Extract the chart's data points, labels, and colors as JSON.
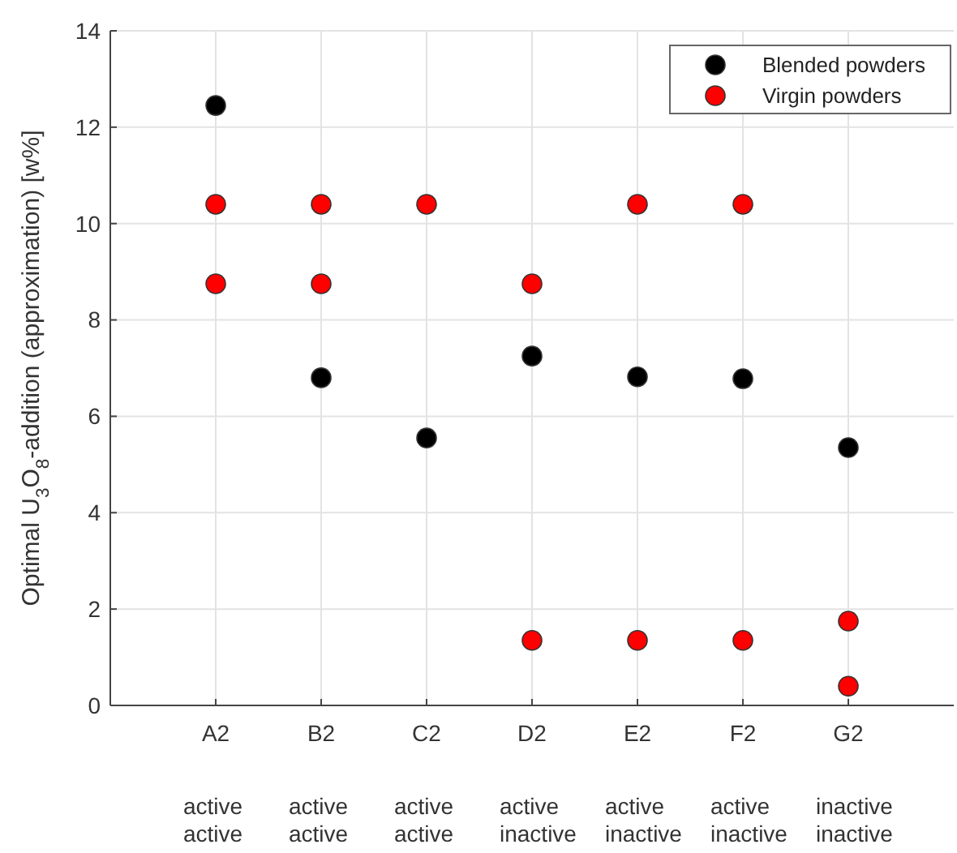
{
  "chart_data": {
    "type": "scatter",
    "ylabel": "Optimal U$_{3}$O$_{8}$-addition (approximation) [w%]",
    "categories": [
      "A2",
      "B2",
      "C2",
      "D2",
      "E2",
      "F2",
      "G2"
    ],
    "series": [
      {
        "name": "Blended powders",
        "color": "#000000",
        "x": [
          "A2",
          "B2",
          "C2",
          "D2",
          "E2",
          "F2",
          "G2"
        ],
        "values": [
          12.45,
          6.8,
          5.55,
          7.25,
          6.82,
          6.78,
          5.35
        ]
      },
      {
        "name": "Virgin powders",
        "color": "#ff0000",
        "x": [
          "A2",
          "A2",
          "B2",
          "B2",
          "C2",
          "D2",
          "D2",
          "E2",
          "E2",
          "F2",
          "F2",
          "G2",
          "G2"
        ],
        "values": [
          10.4,
          8.75,
          10.4,
          8.75,
          10.4,
          8.75,
          1.35,
          10.4,
          1.35,
          10.4,
          1.35,
          1.75,
          0.4
        ]
      }
    ],
    "ylim": [
      0,
      14
    ],
    "yticks": [
      0,
      2,
      4,
      6,
      8,
      10,
      12,
      14
    ],
    "grid": true,
    "legend": "top right",
    "marker": "circle",
    "annotations": [
      "active",
      "active",
      "active",
      "active",
      "active",
      "active",
      "inactive",
      "active",
      "active",
      "active",
      "inactive",
      "inactive",
      "inactive",
      "inactive"
    ]
  }
}
